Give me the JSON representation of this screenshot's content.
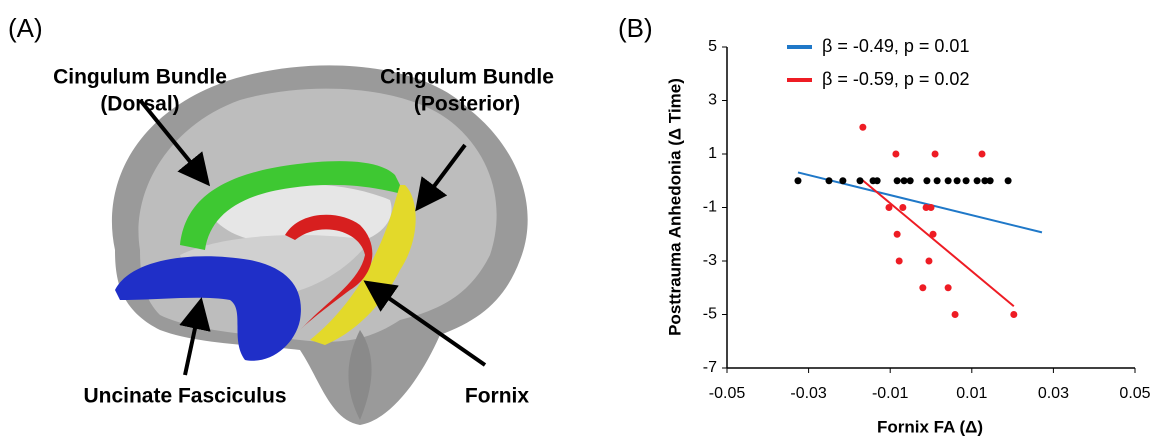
{
  "panel_a": {
    "label": "(A)",
    "labels": [
      {
        "lines": [
          "Cingulum Bundle",
          "(Dorsal)"
        ]
      },
      {
        "lines": [
          "Cingulum Bundle",
          "(Posterior)"
        ]
      },
      {
        "lines": [
          "Uncinate Fasciculus"
        ]
      },
      {
        "lines": [
          "Fornix"
        ]
      }
    ]
  },
  "chart_data": {
    "type": "scatter",
    "panel_label": "(B)",
    "xlabel": "Fornix FA (Δ)",
    "ylabel": "Posttrauma Anhedonia (Δ Time)",
    "xlim": [
      -0.05,
      0.05
    ],
    "xticks": [
      -0.05,
      -0.03,
      -0.01,
      0.01,
      0.03,
      0.05
    ],
    "ylim": [
      -7,
      5
    ],
    "yticks": [
      -7,
      -5,
      -3,
      -1,
      1,
      3,
      5
    ],
    "points": [
      {
        "color": "#000000",
        "x": [
          -0.0326,
          -0.025,
          -0.0216,
          -0.0174,
          -0.0142,
          -0.0132,
          -0.0083,
          -0.0066,
          -0.0051,
          -0.001,
          0.0015,
          0.0042,
          0.0064,
          0.0086,
          0.0113,
          0.0132,
          0.0145,
          0.0189
        ],
        "y": [
          0,
          0,
          0,
          0,
          0,
          0,
          0,
          0,
          0,
          0,
          0,
          0,
          0,
          0,
          0,
          0,
          0,
          0
        ]
      },
      {
        "color": "#ee1c24",
        "x": [
          -0.0167,
          -0.0086,
          0.001,
          0.0125,
          -0.0103,
          -0.0069,
          -0.0012,
          0,
          -0.0083,
          0.0005,
          -0.0078,
          -0.0005,
          -0.002,
          0.0042,
          0.0059,
          0.0203
        ],
        "y": [
          2,
          1,
          1,
          1,
          -1,
          -1,
          -1,
          -1,
          -2,
          -2,
          -3,
          -3,
          -4,
          -4,
          -5,
          -5
        ]
      }
    ],
    "fits": [
      {
        "name": "β = -0.49, p = 0.01",
        "color": "#1f78c8",
        "x": [
          -0.0326,
          0.0272
        ],
        "y": [
          0.31,
          -1.93
        ]
      },
      {
        "name": "β = -0.59, p = 0.02",
        "color": "#ee1c24",
        "x": [
          -0.0167,
          0.0203
        ],
        "y": [
          0.01,
          -4.69
        ]
      }
    ]
  }
}
